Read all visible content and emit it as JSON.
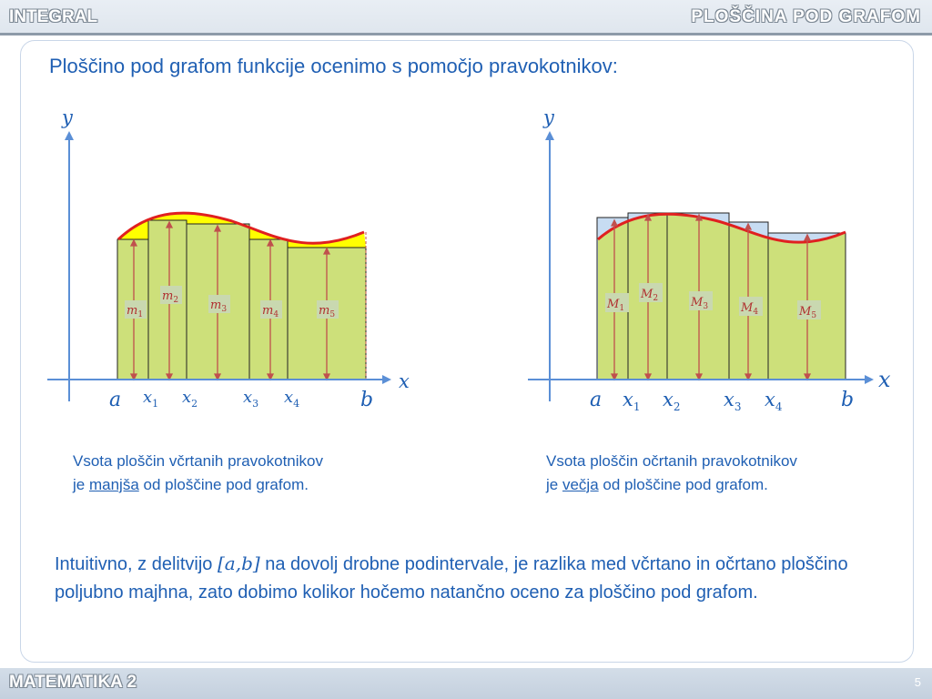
{
  "header": {
    "left": "INTEGRAL",
    "right": "PLOŠČINA  POD  GRAFOM"
  },
  "intro": "Ploščino pod grafom funkcije ocenimo s pomočjo pravokotnikov:",
  "left_graph": {
    "y_label": "y",
    "x_label": "x",
    "labels": {
      "a": "a",
      "b": "b",
      "x1": "x",
      "x2": "x",
      "x3": "x",
      "x4": "x",
      "s1": "1",
      "s2": "2",
      "s3": "3",
      "s4": "4"
    },
    "rects": [
      {
        "name": "m",
        "sub": "1"
      },
      {
        "name": "m",
        "sub": "2"
      },
      {
        "name": "m",
        "sub": "3"
      },
      {
        "name": "m",
        "sub": "4"
      },
      {
        "name": "m",
        "sub": "5"
      }
    ]
  },
  "right_graph": {
    "y_label": "y",
    "x_label": "x",
    "labels": {
      "a": "a",
      "b": "b",
      "x1": "x",
      "x2": "x",
      "x3": "x",
      "x4": "x",
      "s1": "1",
      "s2": "2",
      "s3": "3",
      "s4": "4"
    },
    "rects": [
      {
        "name": "M",
        "sub": "1"
      },
      {
        "name": "M",
        "sub": "2"
      },
      {
        "name": "M",
        "sub": "3"
      },
      {
        "name": "M",
        "sub": "4"
      },
      {
        "name": "M",
        "sub": "5"
      }
    ]
  },
  "captions": {
    "left_line1": "Vsota ploščin včrtanih pravokotnikov",
    "left_pre": "je ",
    "left_u": "manjša",
    "left_post": " od ploščine pod grafom.",
    "right_line1": "Vsota ploščin očrtanih pravokotnikov",
    "right_pre": "je ",
    "right_u": "večja",
    "right_post": " od ploščine pod grafom."
  },
  "conclusion": {
    "pre": "Intuitivno, z delitvijo ",
    "math": "[a,b]",
    "post": " na dovolj drobne podintervale, je razlika med včrtano in očrtano ploščino poljubno majhna, zato dobimo kolikor hočemo natančno oceno za ploščino pod grafom."
  },
  "footer": {
    "title": "MATEMATIKA 2",
    "page": "5"
  },
  "colors": {
    "fill_green": "#cde07a",
    "fill_yellow": "#ffff00",
    "fill_blue": "#c7dcf2",
    "curve": "#e02020",
    "axis": "#5b8fd6",
    "arrow": "#c0504d",
    "text": "#1f5fb3"
  }
}
